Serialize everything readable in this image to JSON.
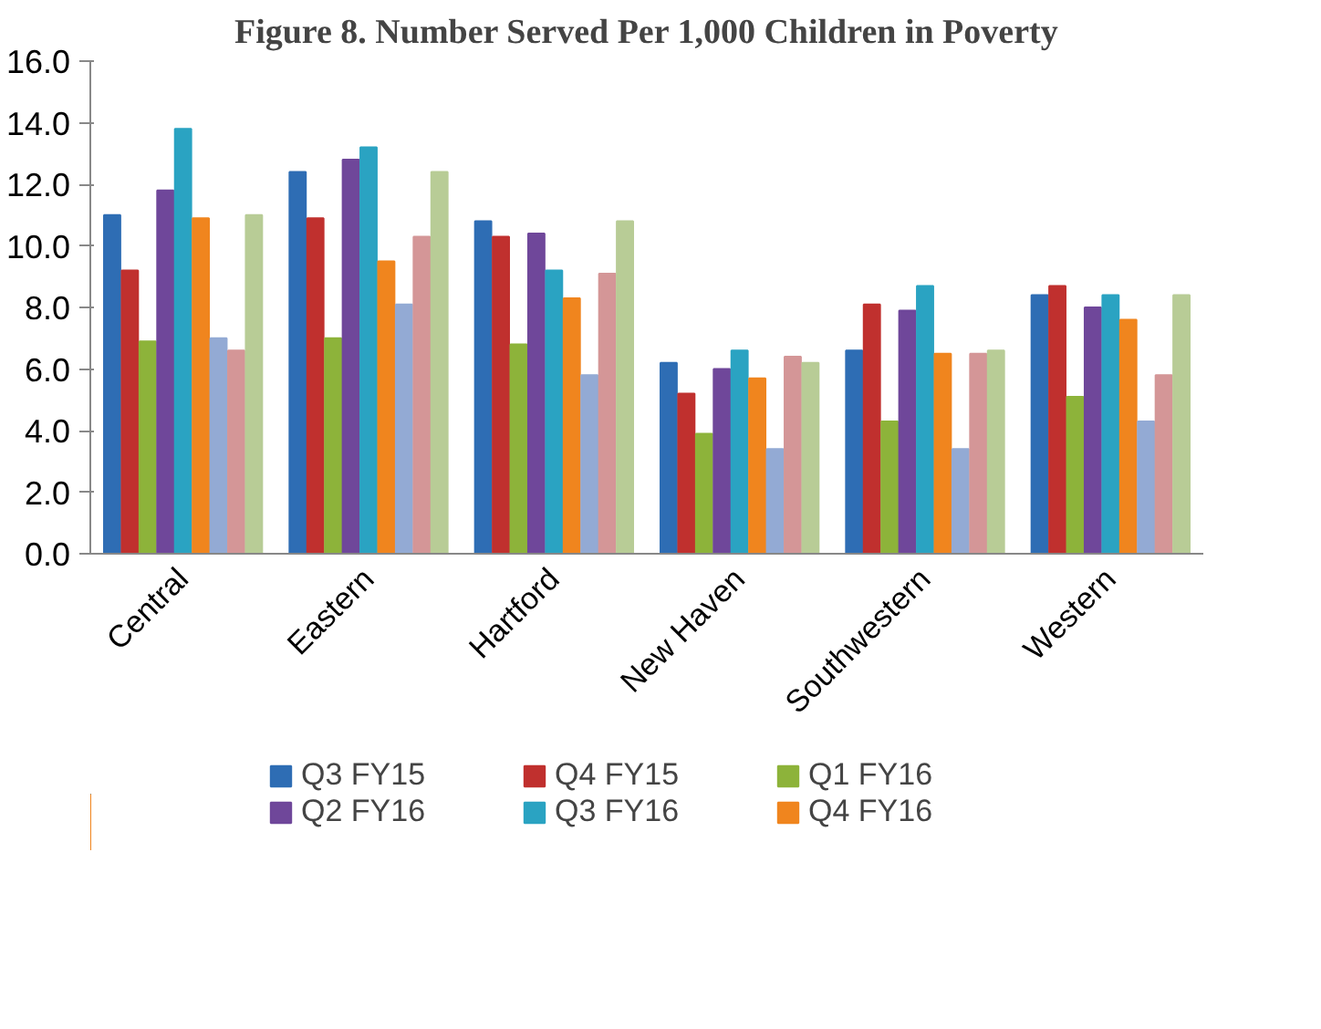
{
  "chart_data": {
    "type": "bar",
    "title": "Figure 8. Number Served Per 1,000 Children in Poverty",
    "categories": [
      "Central",
      "Eastern",
      "Hartford",
      "New Haven",
      "Southwestern",
      "Western"
    ],
    "series": [
      {
        "name": "Q3 FY15",
        "color": "#2e6db4",
        "values": [
          11.0,
          12.4,
          10.8,
          6.2,
          6.6,
          8.4
        ]
      },
      {
        "name": "Q4 FY15",
        "color": "#c0302e",
        "values": [
          9.2,
          10.9,
          10.3,
          5.2,
          8.1,
          8.7
        ]
      },
      {
        "name": "Q1 FY16",
        "color": "#8db33a",
        "values": [
          6.9,
          7.0,
          6.8,
          3.9,
          4.3,
          5.1
        ]
      },
      {
        "name": "Q2 FY16",
        "color": "#6f479a",
        "values": [
          11.8,
          12.8,
          10.4,
          6.0,
          7.9,
          8.0
        ]
      },
      {
        "name": "Q3 FY16",
        "color": "#2aa3c2",
        "values": [
          13.8,
          13.2,
          9.2,
          6.6,
          8.7,
          8.4
        ]
      },
      {
        "name": "Q4 FY16",
        "color": "#f0851e",
        "values": [
          10.9,
          9.5,
          8.3,
          5.7,
          6.5,
          7.6
        ]
      },
      {
        "color": "#93aad4",
        "values": [
          7.0,
          8.1,
          5.8,
          3.4,
          3.4,
          4.3
        ]
      },
      {
        "color": "#d49697",
        "values": [
          6.6,
          10.3,
          9.1,
          6.4,
          6.5,
          5.8
        ]
      },
      {
        "color": "#b8cc96",
        "values": [
          11.0,
          12.4,
          10.8,
          6.2,
          6.6,
          8.4
        ]
      }
    ],
    "ylim": [
      0,
      16
    ],
    "yticks": [
      {
        "value": 0,
        "label": "0.0"
      },
      {
        "value": 2,
        "label": "2.0"
      },
      {
        "value": 4,
        "label": "4.0"
      },
      {
        "value": 6,
        "label": "6.0"
      },
      {
        "value": 8,
        "label": "8.0"
      },
      {
        "value": 10,
        "label": "10.0"
      },
      {
        "value": 12,
        "label": "12.0"
      },
      {
        "value": 14,
        "label": "14.0"
      },
      {
        "value": 16,
        "label": "16.0"
      }
    ],
    "grid": false,
    "legend": "bottom"
  }
}
